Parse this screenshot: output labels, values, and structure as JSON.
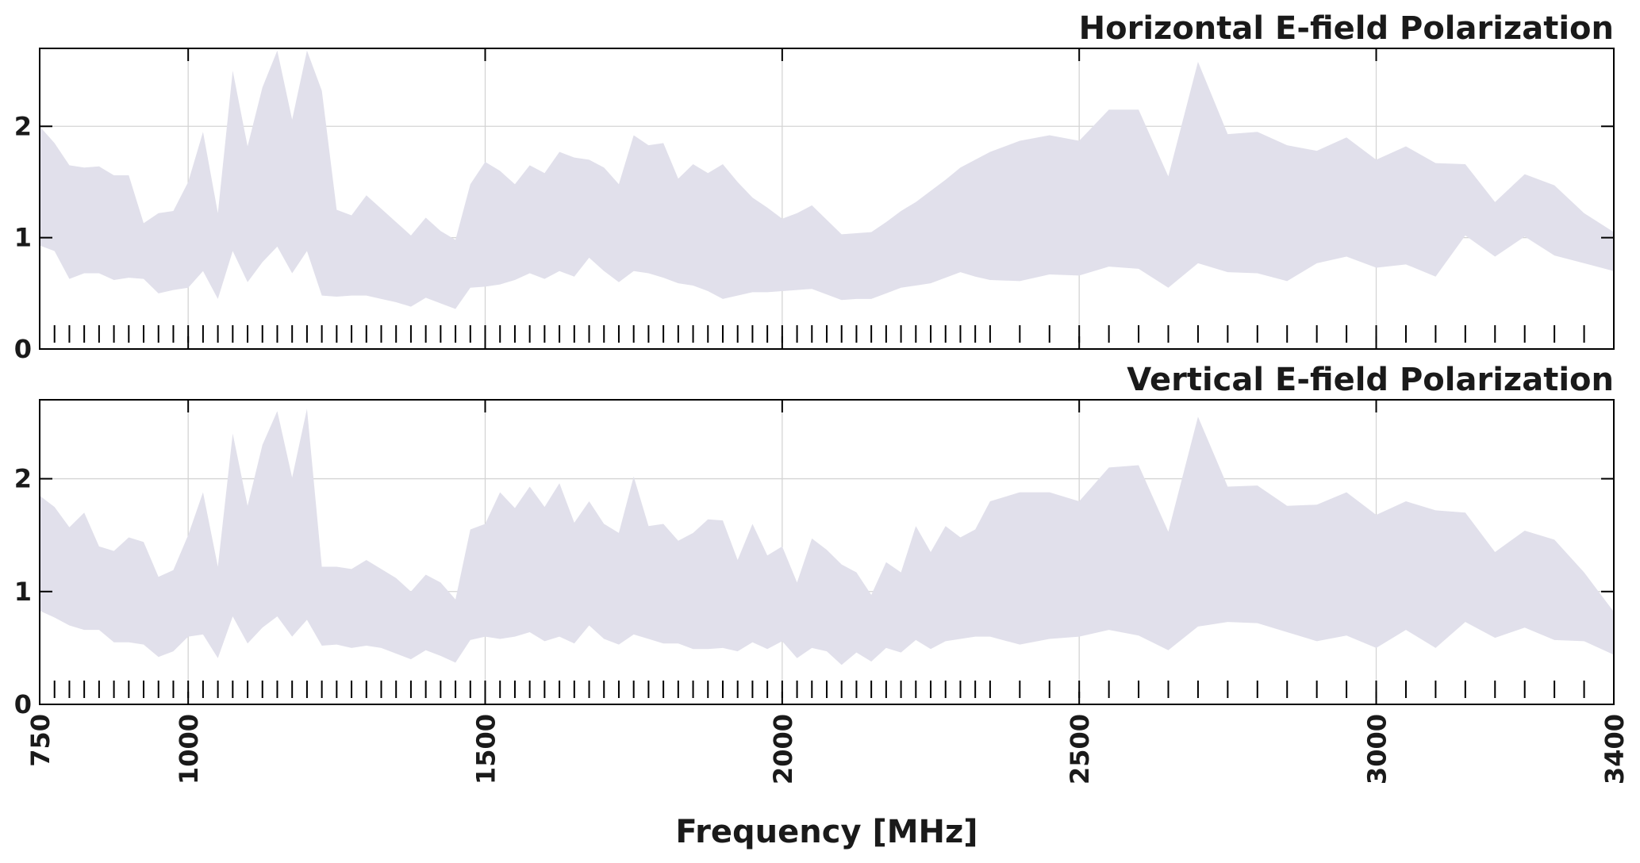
{
  "chart_data": [
    {
      "type": "band",
      "title": "Horizontal E-field Polarization",
      "color": "#e1e0eb",
      "grid": true,
      "xlim": [
        750,
        3400
      ],
      "xticks": [
        750,
        1000,
        1500,
        2000,
        2500,
        3000,
        3400
      ],
      "ylim": [
        0,
        2.7
      ],
      "yticks": [
        0,
        1,
        2
      ],
      "x": [
        750,
        775,
        800,
        825,
        850,
        875,
        900,
        925,
        950,
        975,
        1000,
        1025,
        1050,
        1075,
        1100,
        1125,
        1150,
        1175,
        1200,
        1225,
        1250,
        1275,
        1300,
        1325,
        1350,
        1375,
        1400,
        1425,
        1450,
        1475,
        1500,
        1525,
        1550,
        1575,
        1600,
        1625,
        1650,
        1675,
        1700,
        1725,
        1750,
        1775,
        1800,
        1825,
        1850,
        1875,
        1900,
        1925,
        1950,
        1975,
        2000,
        2025,
        2050,
        2075,
        2100,
        2125,
        2150,
        2175,
        2200,
        2225,
        2250,
        2275,
        2300,
        2325,
        2350,
        2400,
        2450,
        2500,
        2550,
        2600,
        2650,
        2700,
        2750,
        2800,
        2850,
        2900,
        2950,
        3000,
        3050,
        3100,
        3150,
        3200,
        3250,
        3300,
        3350,
        3400
      ],
      "upper": [
        2.0,
        1.85,
        1.65,
        1.63,
        1.64,
        1.56,
        1.56,
        1.13,
        1.22,
        1.24,
        1.5,
        1.95,
        1.22,
        2.5,
        1.82,
        2.35,
        2.68,
        2.06,
        2.68,
        2.32,
        1.25,
        1.2,
        1.38,
        1.26,
        1.14,
        1.02,
        1.18,
        1.06,
        0.98,
        1.48,
        1.68,
        1.6,
        1.48,
        1.65,
        1.58,
        1.77,
        1.72,
        1.7,
        1.63,
        1.48,
        1.92,
        1.83,
        1.85,
        1.53,
        1.66,
        1.58,
        1.66,
        1.5,
        1.36,
        1.27,
        1.17,
        1.22,
        1.29,
        1.16,
        1.03,
        1.04,
        1.05,
        1.14,
        1.24,
        1.32,
        1.42,
        1.52,
        1.63,
        1.7,
        1.77,
        1.87,
        1.92,
        1.87,
        2.15,
        2.15,
        1.55,
        2.58,
        1.93,
        1.95,
        1.83,
        1.78,
        1.9,
        1.7,
        1.82,
        1.67,
        1.66,
        1.32,
        1.57,
        1.47,
        1.22,
        1.05
      ],
      "lower": [
        0.93,
        0.88,
        0.63,
        0.68,
        0.68,
        0.62,
        0.64,
        0.63,
        0.5,
        0.53,
        0.55,
        0.7,
        0.45,
        0.88,
        0.6,
        0.78,
        0.92,
        0.68,
        0.88,
        0.48,
        0.47,
        0.48,
        0.48,
        0.45,
        0.42,
        0.38,
        0.46,
        0.41,
        0.36,
        0.55,
        0.56,
        0.58,
        0.62,
        0.68,
        0.63,
        0.7,
        0.65,
        0.82,
        0.7,
        0.6,
        0.7,
        0.68,
        0.64,
        0.59,
        0.57,
        0.52,
        0.45,
        0.48,
        0.51,
        0.51,
        0.52,
        0.53,
        0.54,
        0.49,
        0.44,
        0.45,
        0.45,
        0.5,
        0.55,
        0.57,
        0.59,
        0.64,
        0.69,
        0.65,
        0.62,
        0.61,
        0.67,
        0.66,
        0.74,
        0.72,
        0.55,
        0.77,
        0.69,
        0.68,
        0.61,
        0.77,
        0.83,
        0.73,
        0.76,
        0.65,
        1.02,
        0.83,
        1.01,
        0.84,
        0.77,
        0.7
      ]
    },
    {
      "type": "band",
      "title": "Vertical E-field Polarization",
      "color": "#e1e0eb",
      "grid": true,
      "xlabel": "Frequency [MHz]",
      "xlim": [
        750,
        3400
      ],
      "xticks": [
        750,
        1000,
        1500,
        2000,
        2500,
        3000,
        3400
      ],
      "ylim": [
        0,
        2.7
      ],
      "yticks": [
        0,
        1,
        2
      ],
      "x": [
        750,
        775,
        800,
        825,
        850,
        875,
        900,
        925,
        950,
        975,
        1000,
        1025,
        1050,
        1075,
        1100,
        1125,
        1150,
        1175,
        1200,
        1225,
        1250,
        1275,
        1300,
        1325,
        1350,
        1375,
        1400,
        1425,
        1450,
        1475,
        1500,
        1525,
        1550,
        1575,
        1600,
        1625,
        1650,
        1675,
        1700,
        1725,
        1750,
        1775,
        1800,
        1825,
        1850,
        1875,
        1900,
        1925,
        1950,
        1975,
        2000,
        2025,
        2050,
        2075,
        2100,
        2125,
        2150,
        2175,
        2200,
        2225,
        2250,
        2275,
        2300,
        2325,
        2350,
        2400,
        2450,
        2500,
        2550,
        2600,
        2650,
        2700,
        2750,
        2800,
        2850,
        2900,
        2950,
        3000,
        3050,
        3100,
        3150,
        3200,
        3250,
        3300,
        3350,
        3400
      ],
      "upper": [
        1.85,
        1.75,
        1.57,
        1.7,
        1.4,
        1.36,
        1.48,
        1.44,
        1.13,
        1.19,
        1.5,
        1.88,
        1.22,
        2.4,
        1.76,
        2.3,
        2.6,
        2.01,
        2.62,
        1.22,
        1.22,
        1.2,
        1.28,
        1.2,
        1.12,
        1.0,
        1.15,
        1.08,
        0.93,
        1.55,
        1.6,
        1.88,
        1.74,
        1.93,
        1.75,
        1.96,
        1.61,
        1.8,
        1.6,
        1.52,
        2.02,
        1.58,
        1.6,
        1.45,
        1.52,
        1.64,
        1.63,
        1.28,
        1.6,
        1.32,
        1.4,
        1.08,
        1.47,
        1.37,
        1.24,
        1.17,
        0.97,
        1.26,
        1.17,
        1.58,
        1.35,
        1.58,
        1.48,
        1.55,
        1.8,
        1.88,
        1.88,
        1.8,
        2.1,
        2.12,
        1.53,
        2.55,
        1.93,
        1.94,
        1.76,
        1.77,
        1.88,
        1.68,
        1.8,
        1.72,
        1.7,
        1.35,
        1.54,
        1.46,
        1.17,
        0.82
      ],
      "lower": [
        0.83,
        0.77,
        0.7,
        0.66,
        0.66,
        0.55,
        0.55,
        0.53,
        0.42,
        0.47,
        0.6,
        0.62,
        0.41,
        0.78,
        0.54,
        0.68,
        0.78,
        0.6,
        0.75,
        0.52,
        0.53,
        0.5,
        0.52,
        0.5,
        0.45,
        0.4,
        0.48,
        0.43,
        0.37,
        0.57,
        0.6,
        0.58,
        0.6,
        0.64,
        0.56,
        0.6,
        0.54,
        0.7,
        0.58,
        0.53,
        0.62,
        0.58,
        0.54,
        0.54,
        0.49,
        0.49,
        0.5,
        0.47,
        0.55,
        0.49,
        0.56,
        0.41,
        0.5,
        0.47,
        0.35,
        0.46,
        0.38,
        0.5,
        0.46,
        0.57,
        0.49,
        0.56,
        0.58,
        0.6,
        0.6,
        0.53,
        0.58,
        0.6,
        0.66,
        0.61,
        0.48,
        0.69,
        0.73,
        0.72,
        0.64,
        0.56,
        0.61,
        0.5,
        0.66,
        0.5,
        0.73,
        0.59,
        0.68,
        0.57,
        0.56,
        0.44
      ]
    }
  ]
}
